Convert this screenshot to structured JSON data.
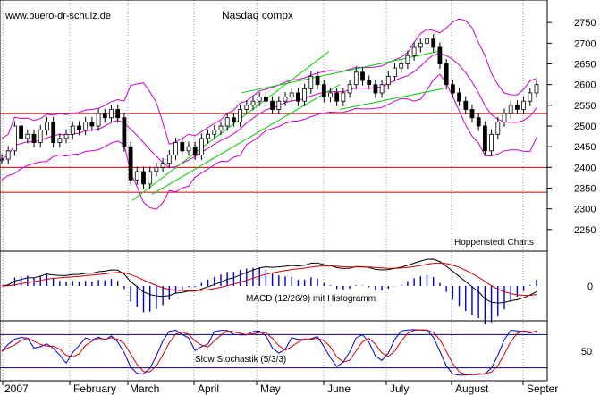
{
  "watermark": "www.buero-dr-schulz.de",
  "credit": "Hoppenstedt Charts",
  "colors": {
    "candle": "#000000",
    "bollinger": "#cc00cc",
    "support": "#cc0000",
    "trend": "#00cc00",
    "macd": "#000000",
    "signal": "#cc0000",
    "histogram": "#0000cc",
    "stoch_k": "#0000cc",
    "stoch_d": "#cc0000",
    "stoch_bands": "#000080"
  },
  "chart_data": [
    {
      "type": "candlestick",
      "title": "Nasdaq compx",
      "x_labels": [
        "2007",
        "February",
        "March",
        "April",
        "May",
        "June",
        "July",
        "August",
        "Septer"
      ],
      "ylim": [
        2200,
        2800
      ],
      "y_ticks": [
        2250,
        2300,
        2350,
        2400,
        2450,
        2500,
        2550,
        2600,
        2650,
        2700,
        2750
      ],
      "horizontal_lines": [
        2530,
        2400,
        2340
      ],
      "close_approx": [
        2420,
        2440,
        2500,
        2470,
        2480,
        2460,
        2490,
        2510,
        2460,
        2470,
        2480,
        2500,
        2490,
        2510,
        2500,
        2530,
        2520,
        2540,
        2520,
        2450,
        2370,
        2390,
        2360,
        2390,
        2400,
        2410,
        2430,
        2460,
        2440,
        2450,
        2430,
        2470,
        2480,
        2490,
        2500,
        2520,
        2510,
        2540,
        2550,
        2560,
        2570,
        2560,
        2540,
        2560,
        2570,
        2580,
        2560,
        2590,
        2620,
        2600,
        2570,
        2580,
        2560,
        2580,
        2600,
        2630,
        2610,
        2600,
        2580,
        2600,
        2620,
        2640,
        2650,
        2670,
        2690,
        2700,
        2710,
        2690,
        2650,
        2600,
        2580,
        2560,
        2540,
        2520,
        2500,
        2440,
        2480,
        2510,
        2530,
        2550,
        2540,
        2560,
        2580,
        2600
      ]
    },
    {
      "type": "line",
      "label": "MACD (12/26/9) mit Histogramm",
      "y_ticks": [
        0
      ]
    },
    {
      "type": "line",
      "label": "Slow Stochastik (5/3/3)",
      "y_ticks": [
        50
      ]
    }
  ]
}
